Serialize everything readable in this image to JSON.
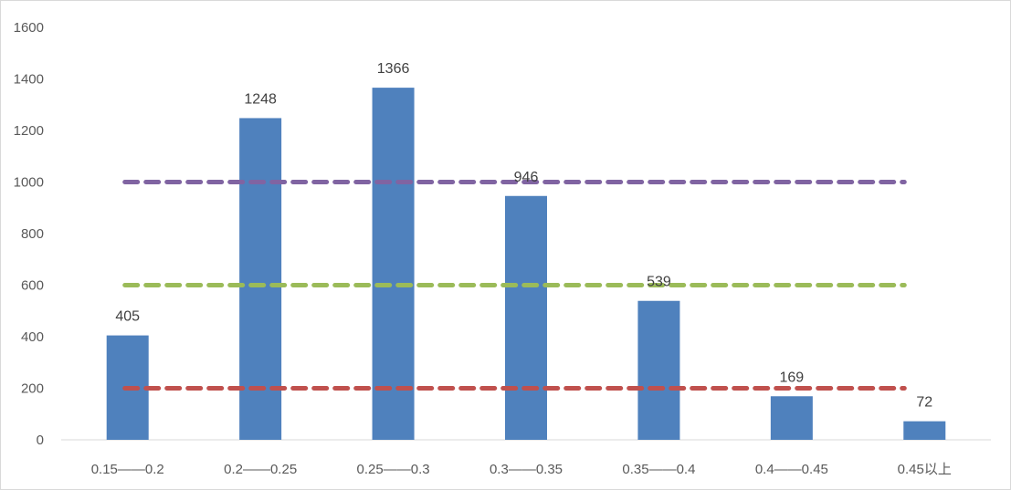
{
  "chart_data": {
    "type": "bar",
    "categories": [
      "0.15——0.2",
      "0.2——0.25",
      "0.25——0.3",
      "0.3——0.35",
      "0.35——0.4",
      "0.4——0.45",
      "0.45以上"
    ],
    "values": [
      405,
      1248,
      1366,
      946,
      539,
      169,
      72
    ],
    "data_labels": [
      "405",
      "1248",
      "1366",
      "946",
      "539",
      "169",
      "72"
    ],
    "ylim": [
      0,
      1600
    ],
    "yticks": [
      "0",
      "200",
      "400",
      "600",
      "800",
      "1000",
      "1200",
      "1400",
      "1600"
    ],
    "grid": false,
    "legend": "none",
    "bar_color": "#4f81bd",
    "reference_lines": [
      {
        "y": 1000,
        "color": "#8064a2",
        "style": "dashed"
      },
      {
        "y": 600,
        "color": "#9bbb59",
        "style": "dashed"
      },
      {
        "y": 200,
        "color": "#c0504d",
        "style": "dashed"
      }
    ]
  }
}
